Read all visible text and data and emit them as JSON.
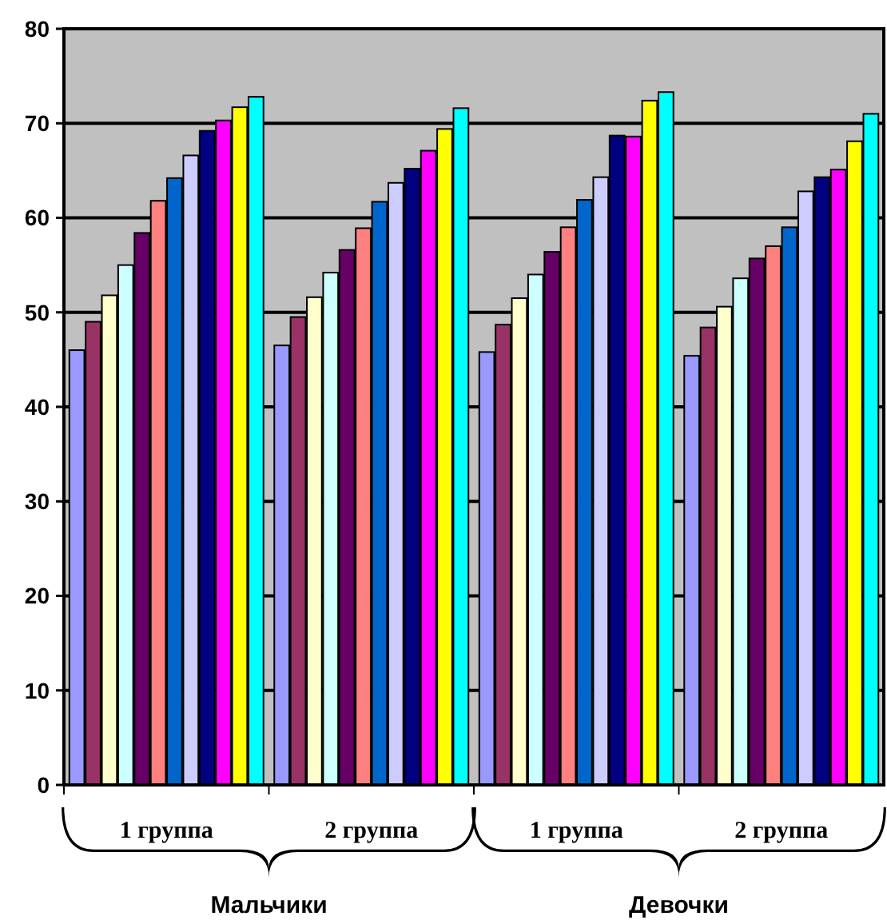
{
  "chart_data": {
    "type": "bar",
    "categories": [
      "1 группа",
      "2 группа",
      "1 группа",
      "2 группа"
    ],
    "series": [
      {
        "color": "#9999ff",
        "values": [
          46,
          46.5,
          45.8,
          45.4
        ]
      },
      {
        "color": "#993366",
        "values": [
          49,
          49.5,
          48.7,
          48.4
        ]
      },
      {
        "color": "#ffffcc",
        "values": [
          51.8,
          51.6,
          51.5,
          50.6
        ]
      },
      {
        "color": "#ccffff",
        "values": [
          55,
          54.2,
          54,
          53.6
        ]
      },
      {
        "color": "#660066",
        "values": [
          58.4,
          56.6,
          56.4,
          55.7
        ]
      },
      {
        "color": "#ff8080",
        "values": [
          61.8,
          58.9,
          59,
          57
        ]
      },
      {
        "color": "#0066cc",
        "values": [
          64.2,
          61.7,
          61.9,
          59
        ]
      },
      {
        "color": "#ccccff",
        "values": [
          66.6,
          63.7,
          64.3,
          62.8
        ]
      },
      {
        "color": "#000080",
        "values": [
          69.2,
          65.2,
          68.7,
          64.3
        ]
      },
      {
        "color": "#ff00ff",
        "values": [
          70.3,
          67.1,
          68.6,
          65.1
        ]
      },
      {
        "color": "#ffff00",
        "values": [
          71.7,
          69.4,
          72.4,
          68.1
        ]
      },
      {
        "color": "#00ffff",
        "values": [
          72.8,
          71.6,
          73.3,
          71
        ]
      }
    ],
    "ylim": [
      0,
      80
    ],
    "yticks": [
      0,
      10,
      20,
      30,
      40,
      50,
      60,
      70,
      80
    ],
    "grid": "y",
    "annotations": [
      "Мальчики",
      "Девочки"
    ]
  }
}
